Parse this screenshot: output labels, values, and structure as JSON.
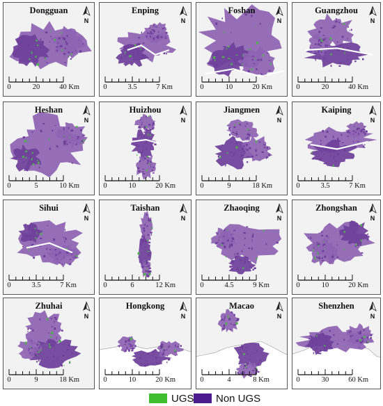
{
  "legend": {
    "items": [
      {
        "label": "UGS",
        "color": "#3fbf2e"
      },
      {
        "label": "Non UGS",
        "color": "#4b1c8c"
      }
    ]
  },
  "colors": {
    "panel_bg": "#f2f2f2",
    "urban": "#8e63b3",
    "urban_dark": "#6e3f9a",
    "green": "#4cb34a",
    "river": "#ffffff"
  },
  "north_label": "N",
  "panels": [
    {
      "name": "Dongguan",
      "scale": [
        "0",
        "20",
        "40 Km"
      ]
    },
    {
      "name": "Enping",
      "scale": [
        "0",
        "3.5",
        "7 Km"
      ]
    },
    {
      "name": "Foshan",
      "scale": [
        "0",
        "10",
        "20 Km"
      ]
    },
    {
      "name": "Guangzhou",
      "scale": [
        "0",
        "20",
        "40 Km"
      ]
    },
    {
      "name": "Heshan",
      "scale": [
        "0",
        "5",
        "10 Km"
      ]
    },
    {
      "name": "Huizhou",
      "scale": [
        "0",
        "10",
        "20 Km"
      ]
    },
    {
      "name": "Jiangmen",
      "scale": [
        "0",
        "9",
        "18 Km"
      ]
    },
    {
      "name": "Kaiping",
      "scale": [
        "0",
        "3.5",
        "7 Km"
      ]
    },
    {
      "name": "Sihui",
      "scale": [
        "0",
        "3.5",
        "7 Km"
      ]
    },
    {
      "name": "Taishan",
      "scale": [
        "0",
        "6",
        "12 Km"
      ]
    },
    {
      "name": "Zhaoqing",
      "scale": [
        "0",
        "4.5",
        "9 Km"
      ]
    },
    {
      "name": "Zhongshan",
      "scale": [
        "0",
        "10",
        "20 Km"
      ]
    },
    {
      "name": "Zhuhai",
      "scale": [
        "0",
        "9",
        "18 Km"
      ]
    },
    {
      "name": "Hongkong",
      "scale": [
        "0",
        "10",
        "20 Km"
      ]
    },
    {
      "name": "Macao",
      "scale": [
        "0",
        "4",
        "8 Km"
      ]
    },
    {
      "name": "Shenzhen",
      "scale": [
        "0",
        "30",
        "60 Km"
      ]
    }
  ]
}
